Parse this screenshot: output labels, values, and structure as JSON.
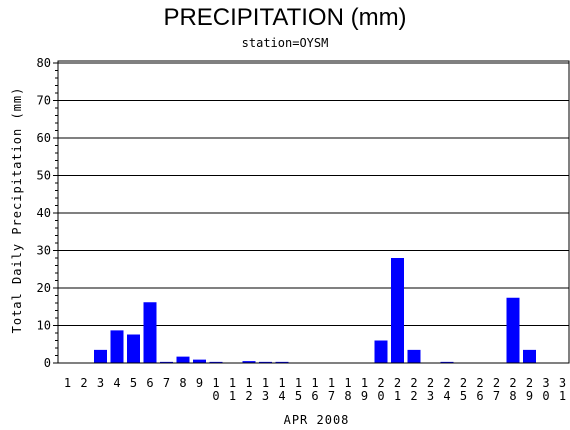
{
  "chart_data": {
    "type": "bar",
    "title": "PRECIPITATION (mm)",
    "subtitle": "station=OYSM",
    "xlabel": "APR 2008",
    "ylabel": "Total Daily Precipitation (mm)",
    "ylim": [
      0,
      80
    ],
    "yticks": [
      0,
      10,
      20,
      30,
      40,
      50,
      60,
      70,
      80
    ],
    "grid": true,
    "bar_color": "#0000ff",
    "categories": [
      "1",
      "2",
      "3",
      "4",
      "5",
      "6",
      "7",
      "8",
      "9",
      "10",
      "11",
      "12",
      "13",
      "14",
      "15",
      "16",
      "17",
      "18",
      "19",
      "20",
      "21",
      "22",
      "23",
      "24",
      "25",
      "26",
      "27",
      "28",
      "29",
      "30",
      "31"
    ],
    "values": [
      0,
      0,
      3.5,
      8.7,
      7.6,
      16.2,
      0.3,
      1.7,
      0.9,
      0.3,
      0,
      0.5,
      0.3,
      0.3,
      0,
      0,
      0,
      0,
      0,
      6.0,
      28.0,
      3.5,
      0,
      0.3,
      0,
      0,
      0,
      17.4,
      3.5,
      0,
      0
    ]
  }
}
